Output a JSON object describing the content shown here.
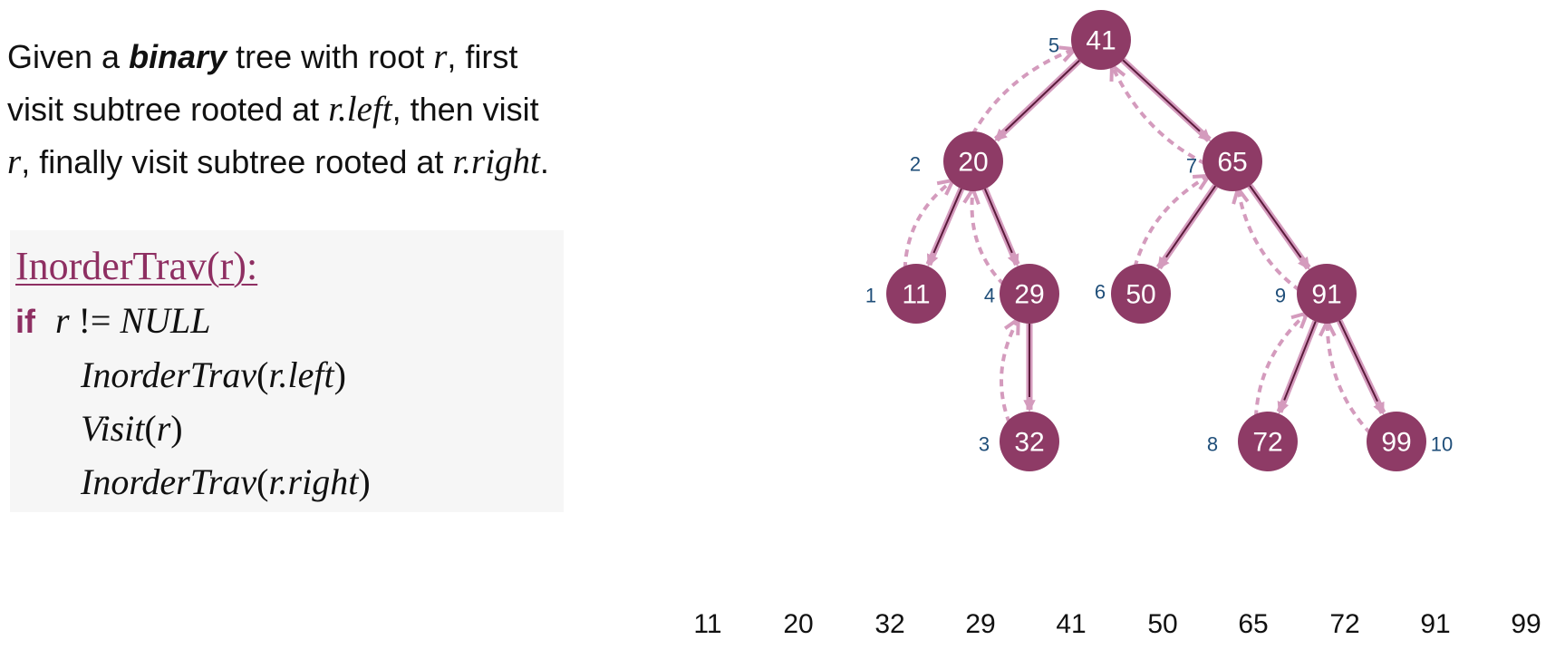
{
  "intro": {
    "l1a": "Given a ",
    "l1b": "binary",
    "l1c": " tree with root ",
    "l1d": "r",
    "l1e": ", first",
    "l2a": "visit subtree rooted at ",
    "l2b": "r.left",
    "l2c": ", then visit",
    "l3a": "r",
    "l3b": ", finally visit subtree rooted at ",
    "l3c": "r.right",
    "l3d": "."
  },
  "code": {
    "title": "InorderTrav(r):",
    "if_kw": "if",
    "cond_a": "r",
    "cond_b": " != ",
    "cond_c": "NULL",
    "call1_a": "InorderTrav",
    "call1_b": "(",
    "call1_c": "r.left",
    "call1_d": ")",
    "visit_a": "Visit",
    "visit_b": "(",
    "visit_c": "r",
    "visit_d": ")",
    "call2_a": "InorderTrav",
    "call2_b": "(",
    "call2_c": "r.right",
    "call2_d": ")"
  },
  "tree": {
    "nodes": [
      {
        "id": "41",
        "order": "5"
      },
      {
        "id": "20",
        "order": "2"
      },
      {
        "id": "65",
        "order": "7"
      },
      {
        "id": "11",
        "order": "1"
      },
      {
        "id": "29",
        "order": "4"
      },
      {
        "id": "50",
        "order": "6"
      },
      {
        "id": "91",
        "order": "9"
      },
      {
        "id": "32",
        "order": "3"
      },
      {
        "id": "72",
        "order": "8"
      },
      {
        "id": "99",
        "order": "10"
      }
    ],
    "edges": [
      [
        "41",
        "20"
      ],
      [
        "41",
        "65"
      ],
      [
        "20",
        "11"
      ],
      [
        "20",
        "29"
      ],
      [
        "29",
        "32"
      ],
      [
        "65",
        "50"
      ],
      [
        "65",
        "91"
      ],
      [
        "91",
        "72"
      ],
      [
        "91",
        "99"
      ]
    ],
    "colors": {
      "node": "#8e3b66",
      "edge": "#5a1a3a",
      "arrow": "#d49bbd",
      "order": "#1f4e79"
    }
  },
  "sequence": [
    "11",
    "20",
    "32",
    "29",
    "41",
    "50",
    "65",
    "72",
    "91",
    "99"
  ]
}
